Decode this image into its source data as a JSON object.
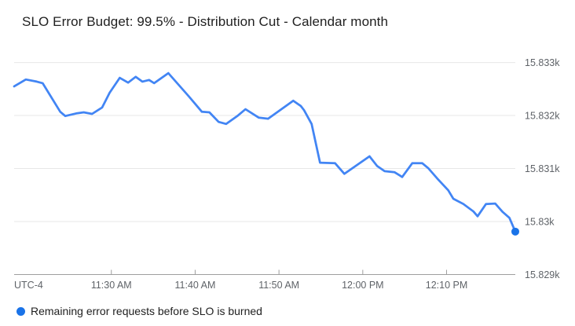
{
  "title": "SLO Error Budget: 99.5% - Distribution Cut - Calendar month",
  "legend": {
    "label": "Remaining error requests before SLO is burned",
    "marker_color": "#1A73E8"
  },
  "colors": {
    "line": "#4285F4",
    "end_dot": "#1A73E8",
    "gridline": "#E7E7E7",
    "axis_line": "#9E9E9E",
    "axis_label": "#5F6368",
    "title_text": "#212121",
    "legend_text": "#212121",
    "background": "#FFFFFF"
  },
  "chart_data": {
    "type": "line",
    "title": "SLO Error Budget: 99.5% - Distribution Cut - Calendar month",
    "grid": "horizontal-only",
    "legend_position": "bottom-left",
    "x_axis": {
      "timezone_label": "UTC-4",
      "unit": "minutes relative to 11:30 AM",
      "range": [
        -11.6,
        48.2
      ],
      "ticks": [
        {
          "t": 0,
          "label": "11:30 AM"
        },
        {
          "t": 10,
          "label": "11:40 AM"
        },
        {
          "t": 20,
          "label": "11:50 AM"
        },
        {
          "t": 30,
          "label": "12:00 PM"
        },
        {
          "t": 40,
          "label": "12:10 PM"
        }
      ]
    },
    "y_axis": {
      "unit": "requests",
      "range": [
        15829,
        15833.29
      ],
      "ticks": [
        {
          "v": 15833,
          "label": "15.833k"
        },
        {
          "v": 15832,
          "label": "15.832k"
        },
        {
          "v": 15831,
          "label": "15.831k"
        },
        {
          "v": 15830,
          "label": "15.83k"
        },
        {
          "v": 15829,
          "label": "15.829k"
        }
      ]
    },
    "series": [
      {
        "name": "Remaining error requests before SLO is burned",
        "end_marker": true,
        "points": [
          [
            -11.6,
            15832.55
          ],
          [
            -10.2,
            15832.68
          ],
          [
            -8.9,
            15832.64
          ],
          [
            -8.2,
            15832.61
          ],
          [
            -6.1,
            15832.07
          ],
          [
            -5.5,
            15831.99
          ],
          [
            -4.2,
            15832.04
          ],
          [
            -3.3,
            15832.06
          ],
          [
            -2.3,
            15832.03
          ],
          [
            -1.1,
            15832.15
          ],
          [
            -0.2,
            15832.43
          ],
          [
            1.0,
            15832.71
          ],
          [
            2.0,
            15832.62
          ],
          [
            2.9,
            15832.73
          ],
          [
            3.7,
            15832.64
          ],
          [
            4.5,
            15832.67
          ],
          [
            5.1,
            15832.61
          ],
          [
            6.8,
            15832.8
          ],
          [
            9.2,
            15832.37
          ],
          [
            10.8,
            15832.07
          ],
          [
            11.7,
            15832.06
          ],
          [
            12.8,
            15831.88
          ],
          [
            13.7,
            15831.84
          ],
          [
            15.1,
            15832.0
          ],
          [
            16.0,
            15832.12
          ],
          [
            17.6,
            15831.96
          ],
          [
            18.7,
            15831.94
          ],
          [
            21.7,
            15832.28
          ],
          [
            22.6,
            15832.18
          ],
          [
            23.0,
            15832.1
          ],
          [
            23.9,
            15831.84
          ],
          [
            24.9,
            15831.11
          ],
          [
            26.7,
            15831.1
          ],
          [
            27.8,
            15830.9
          ],
          [
            30.8,
            15831.23
          ],
          [
            31.7,
            15831.05
          ],
          [
            32.6,
            15830.95
          ],
          [
            33.8,
            15830.93
          ],
          [
            34.7,
            15830.84
          ],
          [
            35.9,
            15831.1
          ],
          [
            37.1,
            15831.1
          ],
          [
            37.8,
            15831.01
          ],
          [
            38.9,
            15830.81
          ],
          [
            40.2,
            15830.59
          ],
          [
            40.8,
            15830.43
          ],
          [
            42.0,
            15830.33
          ],
          [
            43.2,
            15830.19
          ],
          [
            43.7,
            15830.1
          ],
          [
            44.7,
            15830.33
          ],
          [
            45.8,
            15830.34
          ],
          [
            46.7,
            15830.18
          ],
          [
            47.5,
            15830.07
          ],
          [
            48.2,
            15829.81
          ]
        ]
      }
    ]
  }
}
